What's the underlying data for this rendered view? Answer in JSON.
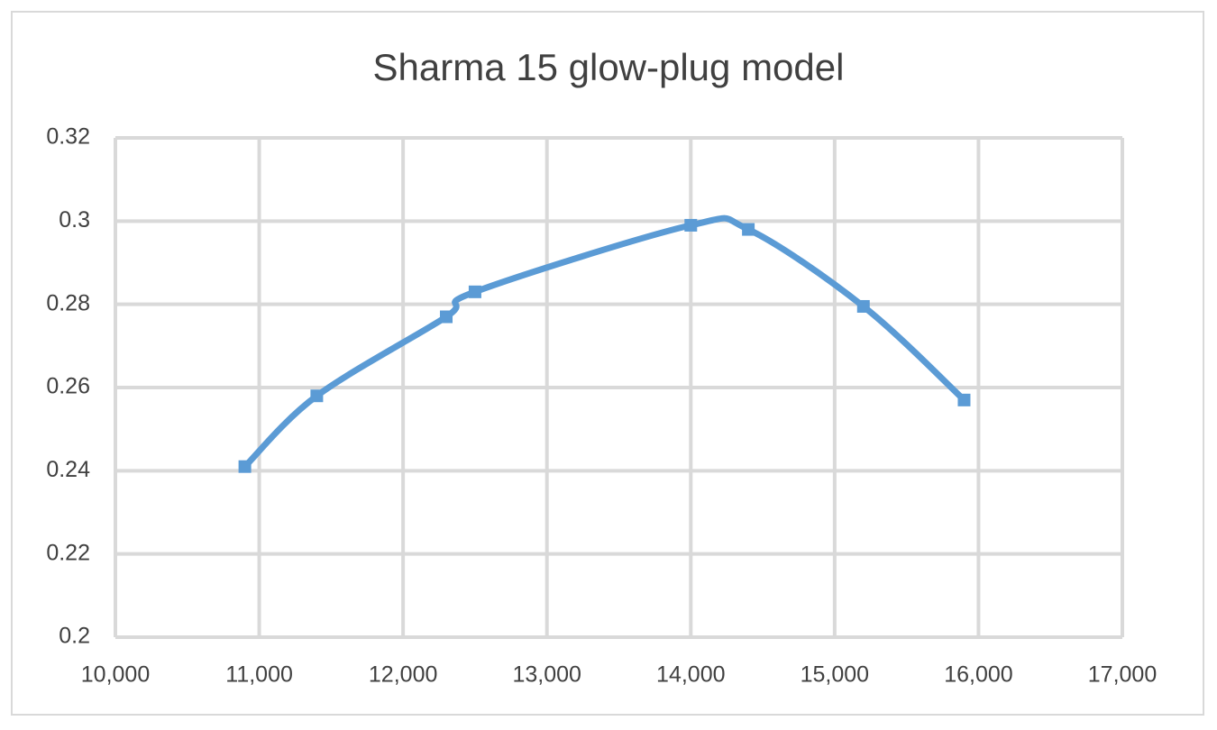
{
  "chart_data": {
    "type": "scatter",
    "title": "Sharma 15 glow-plug model",
    "series": [
      {
        "color": "#5b9bd5",
        "x": [
          10900,
          11400,
          12300,
          12500,
          14000,
          14400,
          15200,
          15900
        ],
        "values": [
          0.241,
          0.258,
          0.277,
          0.283,
          0.299,
          0.298,
          0.2795,
          0.257
        ]
      }
    ],
    "smooth": true,
    "grid": true,
    "xlim": [
      10000,
      17000
    ],
    "xticks": [
      {
        "value": 10000,
        "label": "10,000"
      },
      {
        "value": 11000,
        "label": "11,000"
      },
      {
        "value": 12000,
        "label": "12,000"
      },
      {
        "value": 13000,
        "label": "13,000"
      },
      {
        "value": 14000,
        "label": "14,000"
      },
      {
        "value": 15000,
        "label": "15,000"
      },
      {
        "value": 16000,
        "label": "16,000"
      },
      {
        "value": 17000,
        "label": "17,000"
      }
    ],
    "ylim": [
      0.2,
      0.32
    ],
    "yticks": [
      0.2,
      0.22,
      0.24,
      0.26,
      0.28,
      0.3,
      0.32
    ]
  }
}
